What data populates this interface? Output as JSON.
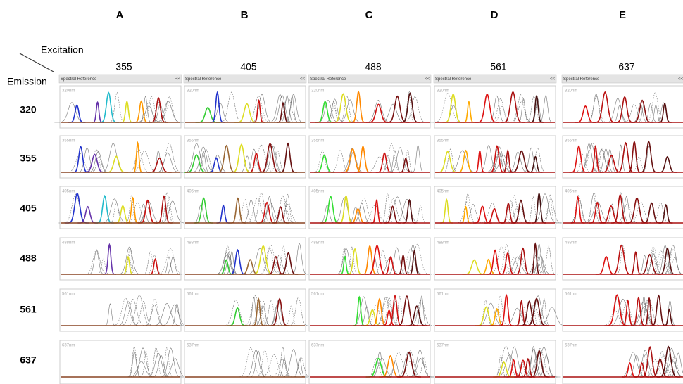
{
  "corner": {
    "excitation": "Excitation",
    "emission": "Emission"
  },
  "columns": [
    {
      "letter": "A",
      "excitation": "355",
      "header": "Spectral Reference",
      "collapse": "<<"
    },
    {
      "letter": "B",
      "excitation": "405",
      "header": "Spectral Reference",
      "collapse": "<<"
    },
    {
      "letter": "C",
      "excitation": "488",
      "header": "Spectral Reference",
      "collapse": "<<"
    },
    {
      "letter": "D",
      "excitation": "561",
      "header": "Spectral Reference",
      "collapse": "<<"
    },
    {
      "letter": "E",
      "excitation": "637",
      "header": "Spectral Reference",
      "collapse": "<<"
    }
  ],
  "rows": [
    {
      "emission": "320",
      "panel_label": "320nm"
    },
    {
      "emission": "355",
      "panel_label": "355nm"
    },
    {
      "emission": "405",
      "panel_label": "405nm"
    },
    {
      "emission": "488",
      "panel_label": "488nm"
    },
    {
      "emission": "561",
      "panel_label": "561nm"
    },
    {
      "emission": "637",
      "panel_label": "637nm"
    }
  ]
}
